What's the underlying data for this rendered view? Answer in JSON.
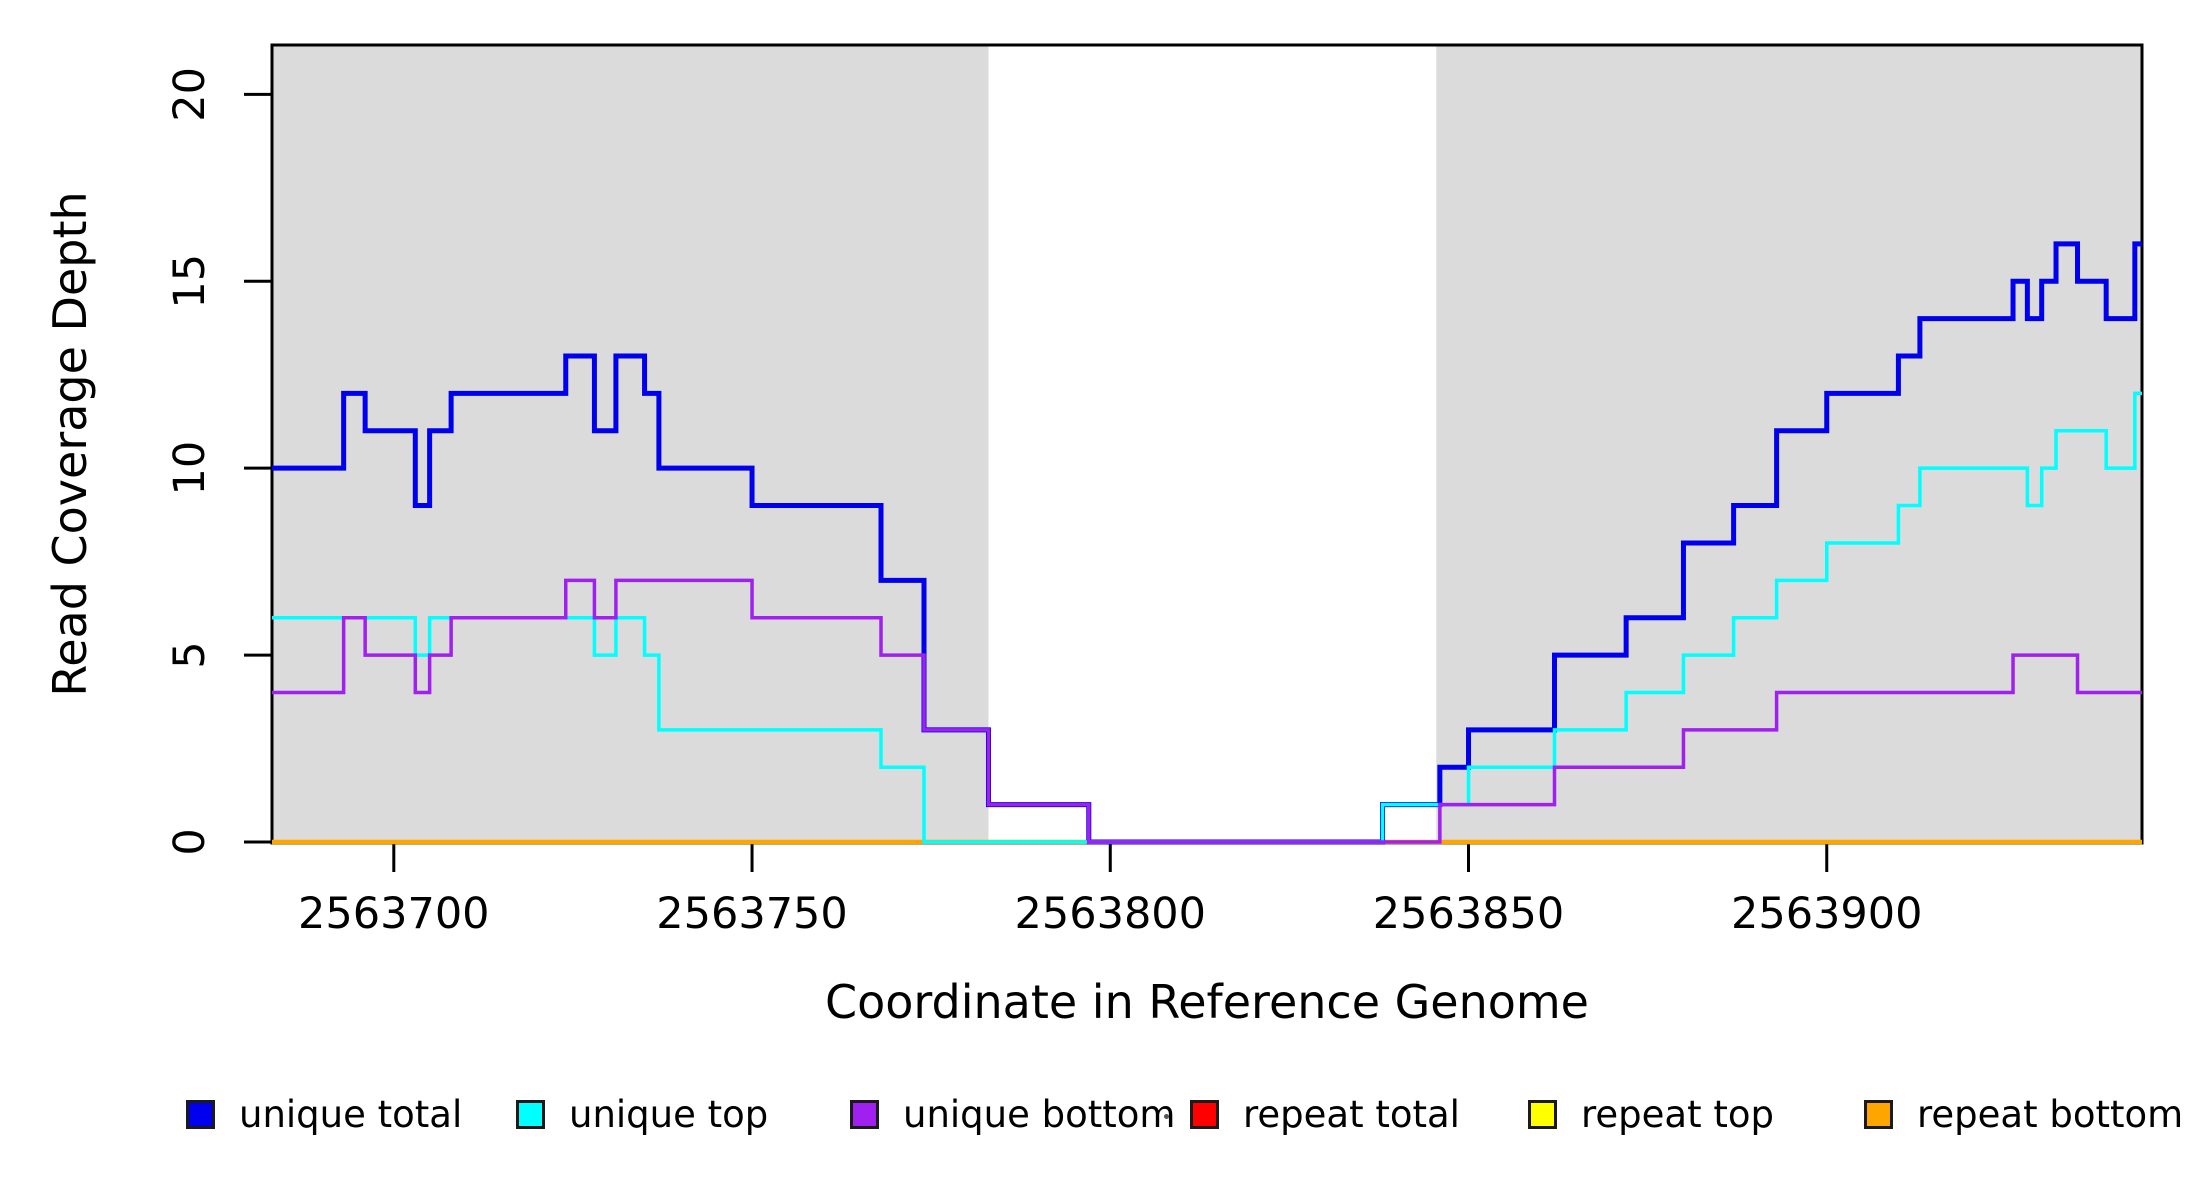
{
  "chart_data": {
    "type": "line",
    "subtype": "step-after",
    "title": "",
    "xlabel": "Coordinate in Reference Genome",
    "ylabel": "Read Coverage Depth",
    "xlim": [
      2563683,
      2563944
    ],
    "ylim": [
      0,
      21.32
    ],
    "grid": false,
    "x_ticks": [
      2563700,
      2563750,
      2563800,
      2563850,
      2563900
    ],
    "x_tick_labels": [
      "2563700",
      "2563750",
      "2563800",
      "2563850",
      "2563900"
    ],
    "y_ticks": [
      0,
      5,
      10,
      15,
      20
    ],
    "y_tick_labels": [
      "0",
      "5",
      "10",
      "15",
      "20"
    ],
    "plot_background": "#ffffff",
    "shaded_region_color": "#DBDBDB",
    "shaded_regions": [
      {
        "x0": 2563683,
        "x1": 2563783
      },
      {
        "x0": 2563845.5,
        "x1": 2563944
      }
    ],
    "legend_position": "bottom",
    "series": [
      {
        "name": "repeat total",
        "color": "#FF0000",
        "line_width": 3,
        "steps": [
          [
            2563683,
            0
          ]
        ]
      },
      {
        "name": "repeat top",
        "color": "#FFFF00",
        "line_width": 3,
        "steps": [
          [
            2563683,
            0
          ]
        ]
      },
      {
        "name": "repeat bottom",
        "color": "#FFA500",
        "line_width": 4.5,
        "steps": [
          [
            2563683,
            0
          ]
        ]
      },
      {
        "name": "unique total",
        "color": "#0000EE",
        "line_width": 5,
        "steps": [
          [
            2563683,
            10
          ],
          [
            2563693,
            12
          ],
          [
            2563696,
            11
          ],
          [
            2563703,
            9
          ],
          [
            2563705,
            11
          ],
          [
            2563708,
            12
          ],
          [
            2563724,
            13
          ],
          [
            2563728,
            11
          ],
          [
            2563731,
            13
          ],
          [
            2563735,
            12
          ],
          [
            2563737,
            10
          ],
          [
            2563750,
            9
          ],
          [
            2563768,
            7
          ],
          [
            2563774,
            3
          ],
          [
            2563783,
            1
          ],
          [
            2563797,
            0
          ],
          [
            2563838,
            1
          ],
          [
            2563846,
            2
          ],
          [
            2563850,
            3
          ],
          [
            2563862,
            5
          ],
          [
            2563872,
            6
          ],
          [
            2563880,
            8
          ],
          [
            2563887,
            9
          ],
          [
            2563893,
            11
          ],
          [
            2563900,
            12
          ],
          [
            2563910,
            13
          ],
          [
            2563913,
            14
          ],
          [
            2563926,
            15
          ],
          [
            2563928,
            14
          ],
          [
            2563930,
            15
          ],
          [
            2563932,
            16
          ],
          [
            2563935,
            15
          ],
          [
            2563939,
            14
          ],
          [
            2563943,
            16
          ]
        ]
      },
      {
        "name": "unique top",
        "color": "#00FFFF",
        "line_width": 3.5,
        "steps": [
          [
            2563683,
            6
          ],
          [
            2563703,
            5
          ],
          [
            2563705,
            6
          ],
          [
            2563728,
            5
          ],
          [
            2563731,
            6
          ],
          [
            2563735,
            5
          ],
          [
            2563737,
            3
          ],
          [
            2563768,
            2
          ],
          [
            2563774,
            0
          ],
          [
            2563838,
            1
          ],
          [
            2563850,
            2
          ],
          [
            2563862,
            3
          ],
          [
            2563872,
            4
          ],
          [
            2563880,
            5
          ],
          [
            2563887,
            6
          ],
          [
            2563893,
            7
          ],
          [
            2563900,
            8
          ],
          [
            2563910,
            9
          ],
          [
            2563913,
            10
          ],
          [
            2563928,
            9
          ],
          [
            2563930,
            10
          ],
          [
            2563932,
            11
          ],
          [
            2563939,
            10
          ],
          [
            2563943,
            12
          ]
        ]
      },
      {
        "name": "unique bottom",
        "color": "#A020F0",
        "line_width": 3.5,
        "steps": [
          [
            2563683,
            4
          ],
          [
            2563693,
            6
          ],
          [
            2563696,
            5
          ],
          [
            2563703,
            4
          ],
          [
            2563705,
            5
          ],
          [
            2563708,
            6
          ],
          [
            2563724,
            7
          ],
          [
            2563728,
            6
          ],
          [
            2563731,
            7
          ],
          [
            2563750,
            6
          ],
          [
            2563768,
            5
          ],
          [
            2563774,
            3
          ],
          [
            2563783,
            1
          ],
          [
            2563797,
            0
          ],
          [
            2563846,
            1
          ],
          [
            2563862,
            2
          ],
          [
            2563880,
            3
          ],
          [
            2563893,
            4
          ],
          [
            2563926,
            5
          ],
          [
            2563935,
            4
          ]
        ]
      }
    ],
    "legend_entries": [
      {
        "label": "unique total",
        "color": "#0000EE"
      },
      {
        "label": "unique top",
        "color": "#00FFFF"
      },
      {
        "label": "unique bottom",
        "color": "#A020F0"
      },
      {
        "label": "repeat total",
        "color": "#FF0000"
      },
      {
        "label": "repeat top",
        "color": "#FFFF00"
      },
      {
        "label": "repeat bottom",
        "color": "#FFA500"
      }
    ]
  }
}
